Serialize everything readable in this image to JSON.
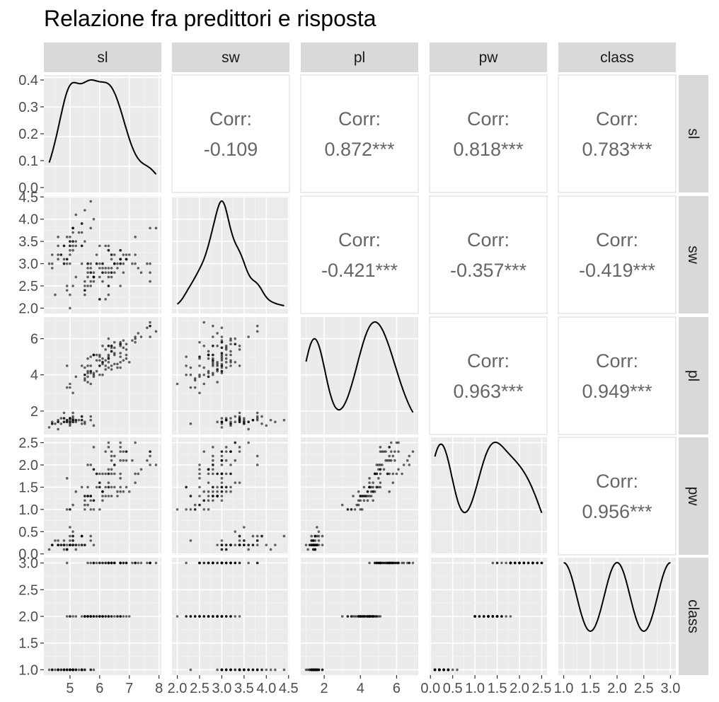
{
  "title": "Relazione fra predittori e risposta",
  "chart_data": {
    "type": "pairs",
    "title": "Relazione fra predittori e risposta",
    "variables": [
      "sl",
      "sw",
      "pl",
      "pw",
      "class"
    ],
    "ranges": {
      "sl": [
        4.3,
        7.9
      ],
      "sw": [
        2.0,
        4.4
      ],
      "pl": [
        1.0,
        6.9
      ],
      "pw": [
        0.1,
        2.5
      ],
      "class": [
        1,
        3
      ]
    },
    "ticks": {
      "sl": [
        5,
        6,
        7,
        8
      ],
      "sw": [
        2.0,
        2.5,
        3.0,
        3.5,
        4.0,
        4.5
      ],
      "pl": [
        2,
        4,
        6
      ],
      "pw": [
        0.0,
        0.5,
        1.0,
        1.5,
        2.0,
        2.5
      ],
      "class": [
        1.0,
        1.5,
        2.0,
        2.5,
        3.0
      ]
    },
    "tick_labels": {
      "sl": [
        "5",
        "6",
        "7",
        "8"
      ],
      "sw": [
        "2.0",
        "2.5",
        "3.0",
        "3.5",
        "4.0",
        "4.5"
      ],
      "pl": [
        "2",
        "4",
        "6"
      ],
      "pw": [
        "0.0",
        "0.5",
        "1.0",
        "1.5",
        "2.0",
        "2.5"
      ],
      "class": [
        "1.0",
        "1.5",
        "2.0",
        "2.5",
        "3.0"
      ]
    },
    "density_y_ticks": [
      0.0,
      0.1,
      0.2,
      0.3,
      0.4
    ],
    "density_y_tick_labels": [
      "0.0",
      "0.1",
      "0.2",
      "0.3",
      "0.4"
    ],
    "density_y_range": [
      0,
      0.4
    ],
    "correlations": [
      {
        "row": "sl",
        "col": "sw",
        "label": "Corr:",
        "value": "-0.109"
      },
      {
        "row": "sl",
        "col": "pl",
        "label": "Corr:",
        "value": "0.872***"
      },
      {
        "row": "sl",
        "col": "pw",
        "label": "Corr:",
        "value": "0.818***"
      },
      {
        "row": "sl",
        "col": "class",
        "label": "Corr:",
        "value": "0.783***"
      },
      {
        "row": "sw",
        "col": "pl",
        "label": "Corr:",
        "value": "-0.421***"
      },
      {
        "row": "sw",
        "col": "pw",
        "label": "Corr:",
        "value": "-0.357***"
      },
      {
        "row": "sw",
        "col": "class",
        "label": "Corr:",
        "value": "-0.419***"
      },
      {
        "row": "pl",
        "col": "pw",
        "label": "Corr:",
        "value": "0.963***"
      },
      {
        "row": "pl",
        "col": "class",
        "label": "Corr:",
        "value": "0.949***"
      },
      {
        "row": "pw",
        "col": "class",
        "label": "Corr:",
        "value": "0.956***"
      }
    ],
    "data": {
      "sl": [
        5.1,
        4.9,
        4.7,
        4.6,
        5.0,
        5.4,
        4.6,
        5.0,
        4.4,
        4.9,
        5.4,
        4.8,
        4.8,
        4.3,
        5.8,
        5.7,
        5.4,
        5.1,
        5.7,
        5.1,
        5.4,
        5.1,
        4.6,
        5.1,
        4.8,
        5.0,
        5.0,
        5.2,
        5.2,
        4.7,
        4.8,
        5.4,
        5.2,
        5.5,
        4.9,
        5.0,
        5.5,
        4.9,
        4.4,
        5.1,
        5.0,
        4.5,
        4.4,
        5.0,
        5.1,
        4.8,
        5.1,
        4.6,
        5.3,
        5.0,
        7.0,
        6.4,
        6.9,
        5.5,
        6.5,
        5.7,
        6.3,
        4.9,
        6.6,
        5.2,
        5.0,
        5.9,
        6.0,
        6.1,
        5.6,
        6.7,
        5.6,
        5.8,
        6.2,
        5.6,
        5.9,
        6.1,
        6.3,
        6.1,
        6.4,
        6.6,
        6.8,
        6.7,
        6.0,
        5.7,
        5.5,
        5.5,
        5.8,
        6.0,
        5.4,
        6.0,
        6.7,
        6.3,
        5.6,
        5.5,
        5.5,
        6.1,
        5.8,
        5.0,
        5.6,
        5.7,
        5.7,
        6.2,
        5.1,
        5.7,
        6.3,
        5.8,
        7.1,
        6.3,
        6.5,
        7.6,
        4.9,
        7.3,
        6.7,
        7.2,
        6.5,
        6.4,
        6.8,
        5.7,
        5.8,
        6.4,
        6.5,
        7.7,
        7.7,
        6.0,
        6.9,
        5.6,
        7.7,
        6.3,
        6.7,
        7.2,
        6.2,
        6.1,
        6.4,
        7.2,
        7.4,
        7.9,
        6.4,
        6.3,
        6.1,
        7.7,
        6.3,
        6.4,
        6.0,
        6.9,
        6.7,
        6.9,
        5.8,
        6.8,
        6.7,
        6.7,
        6.3,
        6.5,
        6.2,
        5.9
      ],
      "sw": [
        3.5,
        3.0,
        3.2,
        3.1,
        3.6,
        3.9,
        3.4,
        3.4,
        2.9,
        3.1,
        3.7,
        3.4,
        3.0,
        3.0,
        4.0,
        4.4,
        3.9,
        3.5,
        3.8,
        3.8,
        3.4,
        3.7,
        3.6,
        3.3,
        3.4,
        3.0,
        3.4,
        3.5,
        3.4,
        3.2,
        3.1,
        3.4,
        4.1,
        4.2,
        3.1,
        3.2,
        3.5,
        3.6,
        3.0,
        3.4,
        3.5,
        2.3,
        3.2,
        3.5,
        3.8,
        3.0,
        3.8,
        3.2,
        3.7,
        3.3,
        3.2,
        3.2,
        3.1,
        2.3,
        2.8,
        2.8,
        3.3,
        2.4,
        2.9,
        2.7,
        2.0,
        3.0,
        2.2,
        2.9,
        2.9,
        3.1,
        3.0,
        2.7,
        2.2,
        2.5,
        3.2,
        2.8,
        2.5,
        2.8,
        2.9,
        3.0,
        2.8,
        3.0,
        2.9,
        2.6,
        2.4,
        2.4,
        2.7,
        2.7,
        3.0,
        3.4,
        3.1,
        2.3,
        3.0,
        2.5,
        2.6,
        3.0,
        2.6,
        2.3,
        2.7,
        3.0,
        2.9,
        2.9,
        2.5,
        2.8,
        3.3,
        2.7,
        3.0,
        2.9,
        3.0,
        3.0,
        2.5,
        2.9,
        2.5,
        3.6,
        3.2,
        2.7,
        3.0,
        2.5,
        2.8,
        3.2,
        3.0,
        3.8,
        2.6,
        2.2,
        3.2,
        2.8,
        2.8,
        2.7,
        3.3,
        3.2,
        2.8,
        3.0,
        2.8,
        3.0,
        2.8,
        3.8,
        2.8,
        2.8,
        2.6,
        3.0,
        3.4,
        3.1,
        3.0,
        3.1,
        3.1,
        3.1,
        2.7,
        3.2,
        3.3,
        3.0,
        2.5,
        3.0,
        3.4,
        3.0
      ],
      "pl": [
        1.4,
        1.4,
        1.3,
        1.5,
        1.4,
        1.7,
        1.4,
        1.5,
        1.4,
        1.5,
        1.5,
        1.6,
        1.4,
        1.1,
        1.2,
        1.5,
        1.3,
        1.4,
        1.7,
        1.5,
        1.7,
        1.5,
        1.0,
        1.7,
        1.9,
        1.6,
        1.6,
        1.5,
        1.4,
        1.6,
        1.6,
        1.5,
        1.5,
        1.4,
        1.5,
        1.2,
        1.3,
        1.4,
        1.3,
        1.5,
        1.3,
        1.3,
        1.3,
        1.6,
        1.9,
        1.4,
        1.6,
        1.4,
        1.5,
        1.4,
        4.7,
        4.5,
        4.9,
        4.0,
        4.6,
        4.5,
        4.7,
        3.3,
        4.6,
        3.9,
        3.5,
        4.2,
        4.0,
        4.7,
        3.6,
        4.4,
        4.5,
        4.1,
        4.5,
        3.9,
        4.8,
        4.0,
        4.9,
        4.7,
        4.3,
        4.4,
        4.8,
        5.0,
        4.5,
        3.5,
        3.8,
        3.7,
        3.9,
        5.1,
        4.5,
        4.5,
        4.7,
        4.4,
        4.1,
        4.0,
        4.4,
        4.6,
        4.0,
        3.3,
        4.2,
        4.2,
        4.2,
        4.3,
        3.0,
        4.1,
        6.0,
        5.1,
        5.9,
        5.6,
        5.8,
        6.6,
        4.5,
        6.3,
        5.8,
        6.1,
        5.1,
        5.3,
        5.5,
        5.0,
        5.1,
        5.3,
        5.5,
        6.7,
        6.9,
        5.0,
        5.7,
        4.9,
        6.7,
        4.9,
        5.7,
        6.0,
        4.8,
        4.9,
        5.6,
        5.8,
        6.1,
        6.4,
        5.6,
        5.1,
        5.6,
        6.1,
        5.6,
        5.5,
        4.8,
        5.4,
        5.6,
        5.1,
        5.1,
        5.9,
        5.7,
        5.2,
        5.0,
        5.2,
        5.4,
        5.1
      ],
      "pw": [
        0.2,
        0.2,
        0.2,
        0.2,
        0.2,
        0.4,
        0.3,
        0.2,
        0.2,
        0.1,
        0.2,
        0.2,
        0.1,
        0.1,
        0.2,
        0.4,
        0.4,
        0.3,
        0.3,
        0.3,
        0.2,
        0.4,
        0.2,
        0.5,
        0.2,
        0.2,
        0.4,
        0.2,
        0.2,
        0.2,
        0.2,
        0.4,
        0.1,
        0.2,
        0.1,
        0.2,
        0.2,
        0.1,
        0.2,
        0.2,
        0.3,
        0.3,
        0.2,
        0.6,
        0.4,
        0.3,
        0.2,
        0.2,
        0.2,
        0.2,
        1.4,
        1.5,
        1.5,
        1.3,
        1.5,
        1.3,
        1.6,
        1.0,
        1.3,
        1.4,
        1.0,
        1.5,
        1.0,
        1.4,
        1.3,
        1.4,
        1.5,
        1.0,
        1.5,
        1.1,
        1.8,
        1.3,
        1.5,
        1.2,
        1.3,
        1.4,
        1.4,
        1.7,
        1.5,
        1.0,
        1.1,
        1.0,
        1.2,
        1.6,
        1.5,
        1.6,
        1.5,
        1.3,
        1.3,
        1.3,
        1.2,
        1.4,
        1.2,
        1.0,
        1.3,
        1.2,
        1.3,
        1.3,
        1.1,
        1.3,
        2.5,
        1.9,
        2.1,
        1.8,
        2.2,
        2.1,
        1.7,
        1.8,
        1.8,
        2.5,
        2.0,
        1.9,
        2.1,
        2.0,
        2.4,
        2.3,
        1.8,
        2.2,
        2.3,
        1.5,
        2.3,
        2.0,
        2.0,
        1.8,
        2.1,
        1.8,
        1.8,
        1.8,
        2.1,
        1.6,
        1.9,
        2.0,
        2.2,
        1.5,
        1.4,
        2.3,
        2.4,
        1.8,
        1.8,
        2.1,
        2.4,
        2.3,
        1.9,
        2.3,
        2.5,
        2.3,
        1.9,
        2.0,
        2.3,
        1.8
      ],
      "class": [
        1,
        1,
        1,
        1,
        1,
        1,
        1,
        1,
        1,
        1,
        1,
        1,
        1,
        1,
        1,
        1,
        1,
        1,
        1,
        1,
        1,
        1,
        1,
        1,
        1,
        1,
        1,
        1,
        1,
        1,
        1,
        1,
        1,
        1,
        1,
        1,
        1,
        1,
        1,
        1,
        1,
        1,
        1,
        1,
        1,
        1,
        1,
        1,
        1,
        1,
        2,
        2,
        2,
        2,
        2,
        2,
        2,
        2,
        2,
        2,
        2,
        2,
        2,
        2,
        2,
        2,
        2,
        2,
        2,
        2,
        2,
        2,
        2,
        2,
        2,
        2,
        2,
        2,
        2,
        2,
        2,
        2,
        2,
        2,
        2,
        2,
        2,
        2,
        2,
        2,
        2,
        2,
        2,
        2,
        2,
        2,
        2,
        2,
        2,
        2,
        3,
        3,
        3,
        3,
        3,
        3,
        3,
        3,
        3,
        3,
        3,
        3,
        3,
        3,
        3,
        3,
        3,
        3,
        3,
        3,
        3,
        3,
        3,
        3,
        3,
        3,
        3,
        3,
        3,
        3,
        3,
        3,
        3,
        3,
        3,
        3,
        3,
        3,
        3,
        3,
        3,
        3,
        3,
        3,
        3,
        3,
        3,
        3,
        3,
        3
      ]
    }
  }
}
